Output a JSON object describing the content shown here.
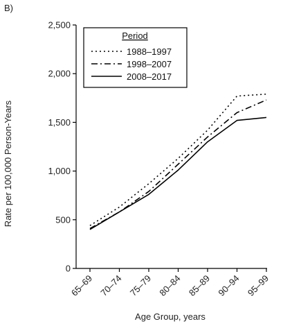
{
  "panel_label": "B)",
  "chart_data": {
    "type": "line",
    "categories": [
      "65–69",
      "70–74",
      "75–79",
      "80–84",
      "85–89",
      "90–94",
      "95–99"
    ],
    "xlabel": "Age Group, years",
    "ylabel": "Rate per 100,000 Person-Years",
    "ylim": [
      0,
      2500
    ],
    "yticks": [
      0,
      500,
      1000,
      1500,
      2000,
      2500
    ],
    "ytick_labels": [
      "0",
      "500",
      "1,000",
      "1,500",
      "2,000",
      "2,500"
    ],
    "grid": false,
    "legend": {
      "title": "Period",
      "position": "top-left"
    },
    "series": [
      {
        "name": "1988–1997",
        "style": "dotted",
        "values": [
          440,
          630,
          870,
          1130,
          1420,
          1770,
          1790
        ]
      },
      {
        "name": "1998–2007",
        "style": "dashdot",
        "values": [
          410,
          580,
          790,
          1070,
          1350,
          1600,
          1730
        ]
      },
      {
        "name": "2008–2017",
        "style": "solid",
        "values": [
          400,
          580,
          760,
          1010,
          1300,
          1520,
          1550
        ]
      }
    ]
  }
}
